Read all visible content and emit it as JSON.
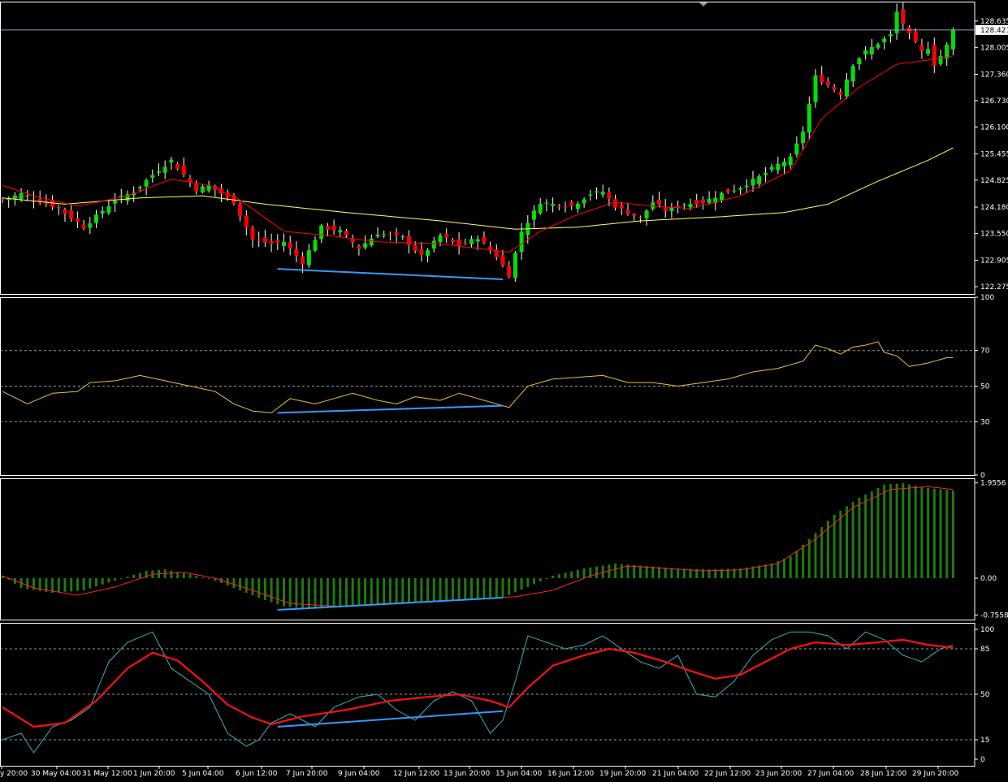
{
  "colors": {
    "background": "#000000",
    "frame": "#ffffff",
    "bull_candle": "#00e000",
    "bear_candle": "#ff0000",
    "wick": "#ffffff",
    "ma_fast": "#ff0000",
    "ma_slow": "#ffff60",
    "rsi_line": "#e8c040",
    "macd_hist": "#1e7a12",
    "macd_signal": "#ff2020",
    "stoch_main": "#3cb0b8",
    "stoch_signal": "#ff1010",
    "divergence": "#3399ff",
    "bid_line": "#8aa0c0"
  },
  "chart_data": [
    {
      "type": "candlestick",
      "panel": "price",
      "ylim": [
        122.1,
        129.1
      ],
      "y_ticks": [
        "128.635",
        "128.005",
        "127.360",
        "126.730",
        "126.100",
        "125.455",
        "124.825",
        "124.180",
        "123.550",
        "122.905",
        "122.275"
      ],
      "y_tick_values": [
        128.635,
        128.005,
        127.36,
        126.73,
        126.1,
        125.455,
        124.825,
        124.18,
        123.55,
        122.905,
        122.275
      ],
      "bid_price": "128.421",
      "x_labels": [
        "y 20:00",
        "30 May 04:00",
        "31 May 12:00",
        "1 Jun 20:00",
        "5 Jun 04:00",
        "6 Jun 12:00",
        "7 Jun 20:00",
        "9 Jun 04:00",
        "12 Jun 12:00",
        "13 Jun 20:00",
        "15 Jun 04:00",
        "16 Jun 12:00",
        "19 Jun 20:00",
        "21 Jun 04:00",
        "22 Jun 12:00",
        "23 Jun 20:00",
        "27 Jun 04:00",
        "28 Jun 12:00",
        "29 Jun 20:00"
      ],
      "close_key": [
        [
          0,
          124.35
        ],
        [
          3,
          124.5
        ],
        [
          9,
          124.15
        ],
        [
          13,
          123.7
        ],
        [
          18,
          124.35
        ],
        [
          21,
          124.55
        ],
        [
          24,
          124.95
        ],
        [
          27,
          125.3
        ],
        [
          29,
          124.95
        ],
        [
          31,
          124.6
        ],
        [
          33,
          124.7
        ],
        [
          37,
          124.3
        ],
        [
          40,
          123.4
        ],
        [
          43,
          123.3
        ],
        [
          45,
          123.35
        ],
        [
          48,
          122.85
        ],
        [
          51,
          123.7
        ],
        [
          54,
          123.6
        ],
        [
          57,
          123.2
        ],
        [
          60,
          123.55
        ],
        [
          64,
          123.45
        ],
        [
          67,
          123.0
        ],
        [
          70,
          123.5
        ],
        [
          73,
          123.25
        ],
        [
          76,
          123.45
        ],
        [
          79,
          123.0
        ],
        [
          81,
          122.55
        ],
        [
          83,
          123.6
        ],
        [
          86,
          124.3
        ],
        [
          88,
          124.25
        ],
        [
          91,
          124.2
        ],
        [
          94,
          124.5
        ],
        [
          96,
          124.55
        ],
        [
          98,
          124.2
        ],
        [
          100,
          124.05
        ],
        [
          102,
          123.9
        ],
        [
          104,
          124.3
        ],
        [
          106,
          124.1
        ],
        [
          109,
          124.25
        ],
        [
          112,
          124.3
        ],
        [
          115,
          124.5
        ],
        [
          118,
          124.65
        ],
        [
          121,
          124.9
        ],
        [
          124,
          125.2
        ],
        [
          126,
          125.35
        ],
        [
          128,
          126.0
        ],
        [
          130,
          127.3
        ],
        [
          132,
          127.1
        ],
        [
          134,
          126.9
        ],
        [
          136,
          127.6
        ],
        [
          138,
          127.9
        ],
        [
          140,
          128.1
        ],
        [
          142,
          128.3
        ],
        [
          143,
          128.85
        ],
        [
          145,
          128.3
        ],
        [
          147,
          127.9
        ],
        [
          148,
          128.0
        ],
        [
          149,
          127.6
        ],
        [
          150,
          127.8
        ],
        [
          151,
          128.05
        ],
        [
          152,
          128.4
        ]
      ],
      "ma_fast_key": [
        [
          0,
          124.7
        ],
        [
          5,
          124.45
        ],
        [
          12,
          124.2
        ],
        [
          20,
          124.45
        ],
        [
          27,
          124.85
        ],
        [
          33,
          124.7
        ],
        [
          38,
          124.35
        ],
        [
          45,
          123.6
        ],
        [
          52,
          123.5
        ],
        [
          60,
          123.35
        ],
        [
          70,
          123.3
        ],
        [
          81,
          123.1
        ],
        [
          86,
          123.6
        ],
        [
          92,
          124.0
        ],
        [
          98,
          124.3
        ],
        [
          104,
          124.2
        ],
        [
          110,
          124.15
        ],
        [
          118,
          124.45
        ],
        [
          126,
          125.05
        ],
        [
          131,
          126.3
        ],
        [
          137,
          127.05
        ],
        [
          143,
          127.6
        ],
        [
          148,
          127.7
        ],
        [
          152,
          127.8
        ]
      ],
      "ma_slow_key": [
        [
          0,
          124.4
        ],
        [
          10,
          124.25
        ],
        [
          22,
          124.4
        ],
        [
          32,
          124.45
        ],
        [
          42,
          124.25
        ],
        [
          55,
          124.05
        ],
        [
          70,
          123.85
        ],
        [
          82,
          123.65
        ],
        [
          92,
          123.7
        ],
        [
          102,
          123.85
        ],
        [
          115,
          123.95
        ],
        [
          125,
          124.05
        ],
        [
          132,
          124.25
        ],
        [
          140,
          124.8
        ],
        [
          148,
          125.3
        ],
        [
          152,
          125.6
        ]
      ],
      "divergence": [
        [
          44,
          122.7
        ],
        [
          80,
          122.45
        ]
      ]
    },
    {
      "type": "line",
      "panel": "rsi",
      "ylim": [
        0,
        100
      ],
      "y_ticks": [
        "100",
        "70",
        "50",
        "30",
        "0"
      ],
      "y_tick_values": [
        100,
        70,
        50,
        30,
        0
      ],
      "levels": [
        70,
        50,
        30
      ],
      "key": [
        [
          0,
          47
        ],
        [
          4,
          40
        ],
        [
          8,
          46
        ],
        [
          12,
          47
        ],
        [
          14,
          52
        ],
        [
          18,
          53
        ],
        [
          22,
          56
        ],
        [
          26,
          53
        ],
        [
          30,
          50
        ],
        [
          34,
          47
        ],
        [
          37,
          40
        ],
        [
          40,
          36
        ],
        [
          43,
          35
        ],
        [
          46,
          43
        ],
        [
          50,
          40
        ],
        [
          53,
          43
        ],
        [
          56,
          46
        ],
        [
          60,
          42
        ],
        [
          63,
          40
        ],
        [
          66,
          44
        ],
        [
          70,
          42
        ],
        [
          73,
          46
        ],
        [
          76,
          43
        ],
        [
          79,
          40
        ],
        [
          81,
          38
        ],
        [
          84,
          50
        ],
        [
          88,
          54
        ],
        [
          92,
          55
        ],
        [
          96,
          56
        ],
        [
          100,
          52
        ],
        [
          104,
          52
        ],
        [
          108,
          50
        ],
        [
          112,
          52
        ],
        [
          116,
          54
        ],
        [
          120,
          58
        ],
        [
          124,
          60
        ],
        [
          128,
          64
        ],
        [
          130,
          73
        ],
        [
          132,
          71
        ],
        [
          134,
          68
        ],
        [
          136,
          72
        ],
        [
          138,
          73
        ],
        [
          140,
          75
        ],
        [
          141,
          69
        ],
        [
          143,
          67
        ],
        [
          145,
          61
        ],
        [
          148,
          63
        ],
        [
          151,
          66
        ]
      ],
      "divergence": [
        [
          44,
          35
        ],
        [
          80,
          39
        ]
      ]
    },
    {
      "type": "bar_line",
      "panel": "macd",
      "ylim": [
        -0.85,
        2.05
      ],
      "y_ticks": [
        "1.9556",
        "0.00",
        "-0.7558"
      ],
      "y_tick_values": [
        1.9556,
        0.0,
        -0.7558
      ],
      "hist_key": [
        [
          0,
          0.05
        ],
        [
          3,
          -0.2
        ],
        [
          8,
          -0.3
        ],
        [
          13,
          -0.25
        ],
        [
          18,
          -0.05
        ],
        [
          23,
          0.15
        ],
        [
          26,
          0.18
        ],
        [
          30,
          0.08
        ],
        [
          34,
          -0.05
        ],
        [
          38,
          -0.25
        ],
        [
          42,
          -0.45
        ],
        [
          45,
          -0.58
        ],
        [
          50,
          -0.63
        ],
        [
          60,
          -0.55
        ],
        [
          70,
          -0.47
        ],
        [
          80,
          -0.4
        ],
        [
          84,
          -0.18
        ],
        [
          88,
          0.05
        ],
        [
          93,
          0.2
        ],
        [
          98,
          0.3
        ],
        [
          103,
          0.25
        ],
        [
          108,
          0.2
        ],
        [
          113,
          0.18
        ],
        [
          118,
          0.2
        ],
        [
          123,
          0.3
        ],
        [
          126,
          0.45
        ],
        [
          129,
          0.8
        ],
        [
          133,
          1.3
        ],
        [
          137,
          1.65
        ],
        [
          141,
          1.92
        ],
        [
          144,
          1.95
        ],
        [
          148,
          1.85
        ],
        [
          152,
          1.8
        ]
      ],
      "signal_key": [
        [
          0,
          0.05
        ],
        [
          5,
          -0.2
        ],
        [
          12,
          -0.35
        ],
        [
          18,
          -0.18
        ],
        [
          24,
          0.08
        ],
        [
          29,
          0.12
        ],
        [
          34,
          0.0
        ],
        [
          40,
          -0.25
        ],
        [
          46,
          -0.52
        ],
        [
          54,
          -0.58
        ],
        [
          64,
          -0.5
        ],
        [
          74,
          -0.45
        ],
        [
          82,
          -0.38
        ],
        [
          88,
          -0.25
        ],
        [
          94,
          0.05
        ],
        [
          100,
          0.25
        ],
        [
          106,
          0.2
        ],
        [
          112,
          0.15
        ],
        [
          118,
          0.17
        ],
        [
          124,
          0.3
        ],
        [
          130,
          0.8
        ],
        [
          136,
          1.45
        ],
        [
          142,
          1.82
        ],
        [
          148,
          1.88
        ],
        [
          152,
          1.82
        ]
      ],
      "divergence": [
        [
          44,
          -0.65
        ],
        [
          80,
          -0.4
        ]
      ]
    },
    {
      "type": "line",
      "panel": "stochastic",
      "ylim": [
        -5,
        105
      ],
      "y_ticks": [
        "100",
        "85",
        "50",
        "15",
        "0"
      ],
      "y_tick_values": [
        100,
        85,
        50,
        15,
        0
      ],
      "levels": [
        85,
        50,
        15
      ],
      "main_key": [
        [
          0,
          15
        ],
        [
          3,
          20
        ],
        [
          5,
          5
        ],
        [
          8,
          25
        ],
        [
          11,
          30
        ],
        [
          14,
          40
        ],
        [
          17,
          75
        ],
        [
          20,
          90
        ],
        [
          24,
          98
        ],
        [
          27,
          70
        ],
        [
          30,
          60
        ],
        [
          33,
          50
        ],
        [
          36,
          20
        ],
        [
          39,
          10
        ],
        [
          41,
          15
        ],
        [
          43,
          28
        ],
        [
          46,
          35
        ],
        [
          50,
          25
        ],
        [
          53,
          40
        ],
        [
          57,
          48
        ],
        [
          60,
          50
        ],
        [
          63,
          38
        ],
        [
          66,
          30
        ],
        [
          69,
          45
        ],
        [
          72,
          52
        ],
        [
          75,
          45
        ],
        [
          78,
          20
        ],
        [
          80,
          30
        ],
        [
          82,
          60
        ],
        [
          84,
          95
        ],
        [
          87,
          90
        ],
        [
          90,
          85
        ],
        [
          93,
          88
        ],
        [
          96,
          95
        ],
        [
          99,
          85
        ],
        [
          102,
          75
        ],
        [
          105,
          70
        ],
        [
          108,
          80
        ],
        [
          111,
          50
        ],
        [
          114,
          48
        ],
        [
          117,
          60
        ],
        [
          120,
          80
        ],
        [
          123,
          92
        ],
        [
          126,
          98
        ],
        [
          129,
          98
        ],
        [
          132,
          95
        ],
        [
          135,
          85
        ],
        [
          138,
          98
        ],
        [
          141,
          92
        ],
        [
          144,
          80
        ],
        [
          147,
          75
        ],
        [
          150,
          85
        ],
        [
          152,
          88
        ]
      ],
      "signal_key": [
        [
          0,
          40
        ],
        [
          5,
          25
        ],
        [
          10,
          28
        ],
        [
          15,
          45
        ],
        [
          20,
          70
        ],
        [
          24,
          82
        ],
        [
          28,
          76
        ],
        [
          32,
          60
        ],
        [
          36,
          42
        ],
        [
          40,
          32
        ],
        [
          43,
          27
        ],
        [
          48,
          33
        ],
        [
          55,
          38
        ],
        [
          62,
          45
        ],
        [
          68,
          48
        ],
        [
          73,
          50
        ],
        [
          78,
          45
        ],
        [
          81,
          40
        ],
        [
          84,
          55
        ],
        [
          88,
          72
        ],
        [
          93,
          80
        ],
        [
          97,
          85
        ],
        [
          101,
          82
        ],
        [
          106,
          75
        ],
        [
          110,
          68
        ],
        [
          114,
          62
        ],
        [
          118,
          65
        ],
        [
          122,
          75
        ],
        [
          126,
          85
        ],
        [
          130,
          90
        ],
        [
          135,
          88
        ],
        [
          140,
          90
        ],
        [
          144,
          92
        ],
        [
          148,
          88
        ],
        [
          152,
          86
        ]
      ],
      "divergence": [
        [
          44,
          25
        ],
        [
          80,
          37
        ]
      ]
    }
  ]
}
